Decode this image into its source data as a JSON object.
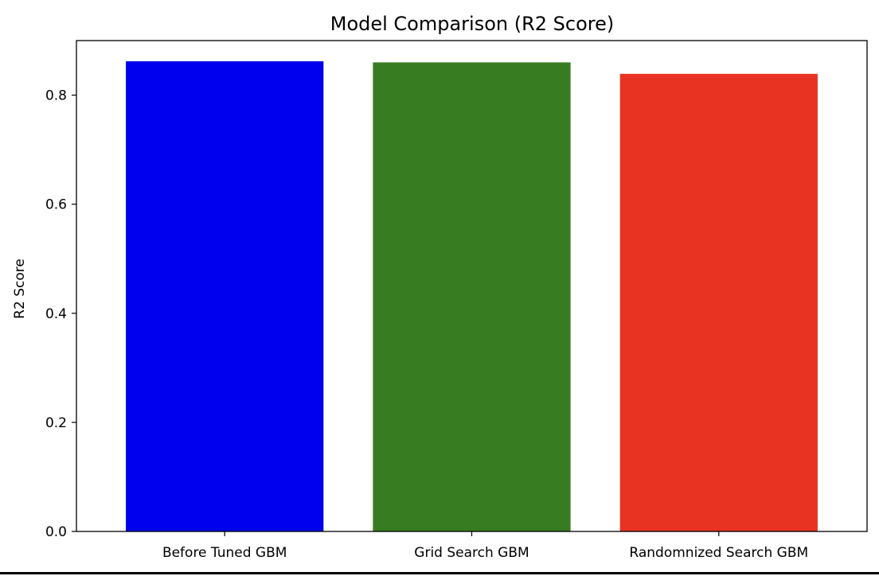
{
  "chart_data": {
    "type": "bar",
    "title": "Model Comparison (R2 Score)",
    "xlabel": "",
    "ylabel": "R2 Score",
    "categories": [
      "Before Tuned GBM",
      "Grid Search GBM",
      "Randomnized Search GBM"
    ],
    "values": [
      0.862,
      0.86,
      0.839
    ],
    "colors": [
      "#0000ee",
      "#387c22",
      "#e83323"
    ],
    "ylim": [
      0,
      0.9
    ],
    "yticks": [
      0.0,
      0.2,
      0.4,
      0.6,
      0.8
    ],
    "ytick_labels": [
      "0.0",
      "0.2",
      "0.4",
      "0.6",
      "0.8"
    ],
    "grid": false,
    "legend": "none"
  }
}
